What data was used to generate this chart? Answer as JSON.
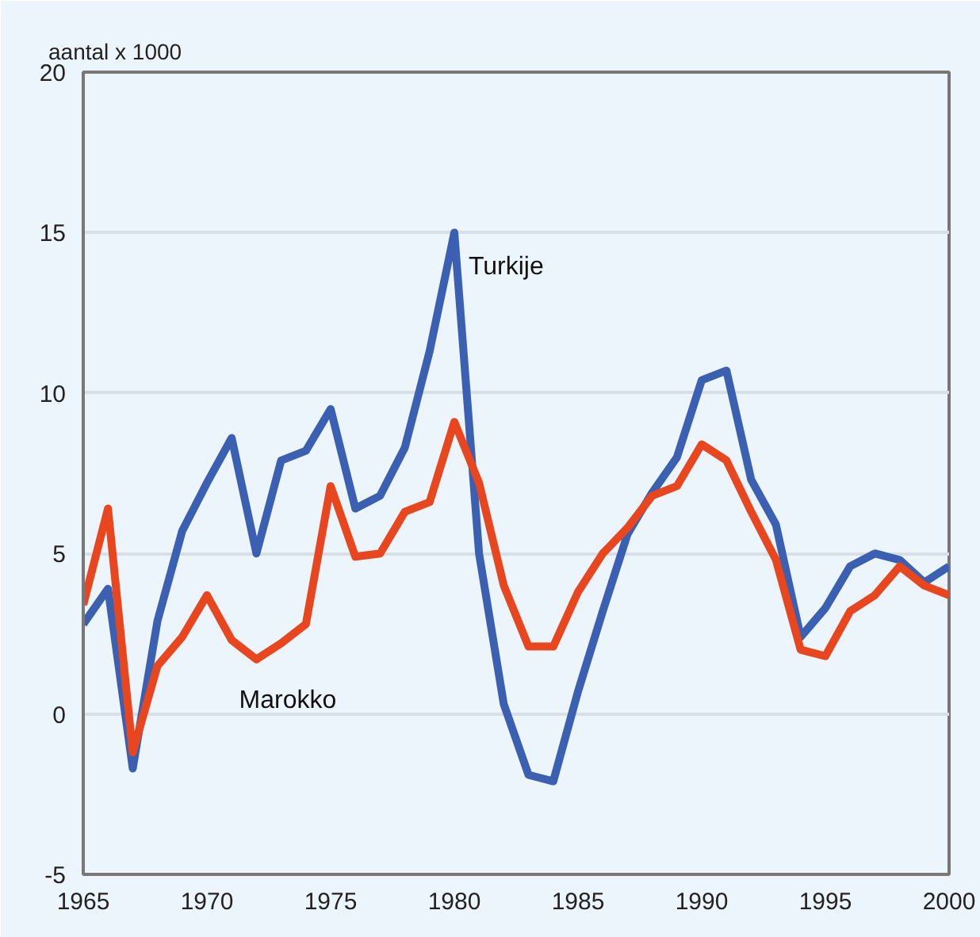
{
  "chart_data": {
    "type": "line",
    "ylabel": "aantal x 1000",
    "x": [
      1965,
      1966,
      1967,
      1968,
      1969,
      1970,
      1971,
      1972,
      1973,
      1974,
      1975,
      1976,
      1977,
      1978,
      1979,
      1980,
      1981,
      1982,
      1983,
      1984,
      1985,
      1986,
      1987,
      1988,
      1989,
      1990,
      1991,
      1992,
      1993,
      1994,
      1995,
      1996,
      1997,
      1998,
      1999,
      2000
    ],
    "series": [
      {
        "name": "Turkije",
        "color": "#3b60b2",
        "values": [
          2.8,
          3.9,
          -1.7,
          2.9,
          5.7,
          7.2,
          8.6,
          5.0,
          7.9,
          8.2,
          9.5,
          6.4,
          6.8,
          8.3,
          11.3,
          15.0,
          5.0,
          0.3,
          -1.9,
          -2.1,
          0.7,
          3.2,
          5.6,
          6.9,
          8.0,
          10.4,
          10.7,
          7.3,
          5.9,
          2.4,
          3.3,
          4.6,
          5.0,
          4.8,
          4.1,
          4.6
        ]
      },
      {
        "name": "Marokko",
        "color": "#e8461e",
        "values": [
          3.4,
          6.4,
          -1.2,
          1.5,
          2.4,
          3.7,
          2.3,
          1.7,
          2.2,
          2.8,
          7.1,
          4.9,
          5.0,
          6.3,
          6.6,
          9.1,
          7.2,
          4.0,
          2.1,
          2.1,
          3.8,
          5.0,
          5.8,
          6.8,
          7.1,
          8.4,
          7.9,
          6.3,
          4.8,
          2.0,
          1.8,
          3.2,
          3.7,
          4.6,
          4.0,
          3.7
        ]
      }
    ],
    "xlim": [
      1965,
      2000
    ],
    "xticks": [
      1965,
      1970,
      1975,
      1980,
      1985,
      1990,
      1995,
      2000
    ],
    "ylim": [
      -5,
      20
    ],
    "yticks": [
      -5,
      0,
      5,
      10,
      15,
      20
    ],
    "grid": "y",
    "line_style": "solid",
    "marker": "none"
  }
}
